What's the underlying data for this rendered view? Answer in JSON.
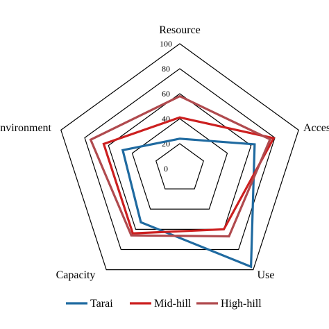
{
  "chart_data": {
    "type": "radar",
    "axes": [
      "Resource",
      "Access",
      "Use",
      "Capacity",
      "Environment"
    ],
    "rlim": [
      0,
      100
    ],
    "ticks": [
      0,
      20,
      40,
      60,
      80,
      100
    ],
    "grid": true,
    "legend": "bottom",
    "series": [
      {
        "name": "Tarai",
        "color": "#1f6aa0",
        "values": [
          24,
          63,
          97,
          53,
          48
        ]
      },
      {
        "name": "Mid-hill",
        "color": "#cc1f1f",
        "values": [
          41,
          79,
          60,
          64,
          64
        ]
      },
      {
        "name": "High-hill",
        "color": "#b04a4e",
        "values": [
          58,
          76,
          67,
          66,
          75
        ]
      }
    ]
  }
}
